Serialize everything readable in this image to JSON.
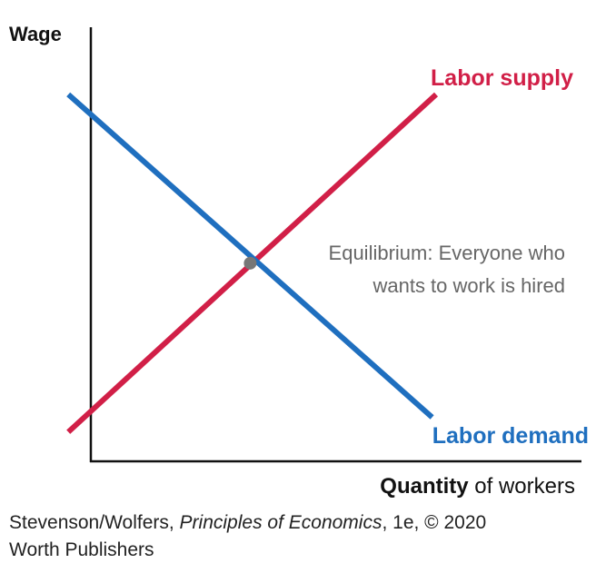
{
  "chart_data": {
    "type": "line",
    "title": "",
    "ylabel": "Wage",
    "xlabel_bold": "Quantity",
    "xlabel_rest": " of workers",
    "series": [
      {
        "name": "Labor supply",
        "color": "#d11f47",
        "points": [
          [
            0.08,
            0.08
          ],
          [
            1.0,
            1.0
          ]
        ]
      },
      {
        "name": "Labor demand",
        "color": "#1f6fbf",
        "points": [
          [
            0.08,
            1.0
          ],
          [
            0.99,
            0.12
          ]
        ]
      }
    ],
    "equilibrium": {
      "x": 0.535,
      "y": 0.535,
      "color": "#777777",
      "label_line1": "Equilibrium: Everyone who",
      "label_line2": "wants to work is hired",
      "label_color": "#666666"
    },
    "axis_color": "#111111",
    "grid": false,
    "ticks": false
  },
  "credit": {
    "author": "Stevenson/Wolfers, ",
    "book": "Principles of Economics",
    "edition": ", 1e, © 2020",
    "publisher": "Worth Publishers"
  }
}
